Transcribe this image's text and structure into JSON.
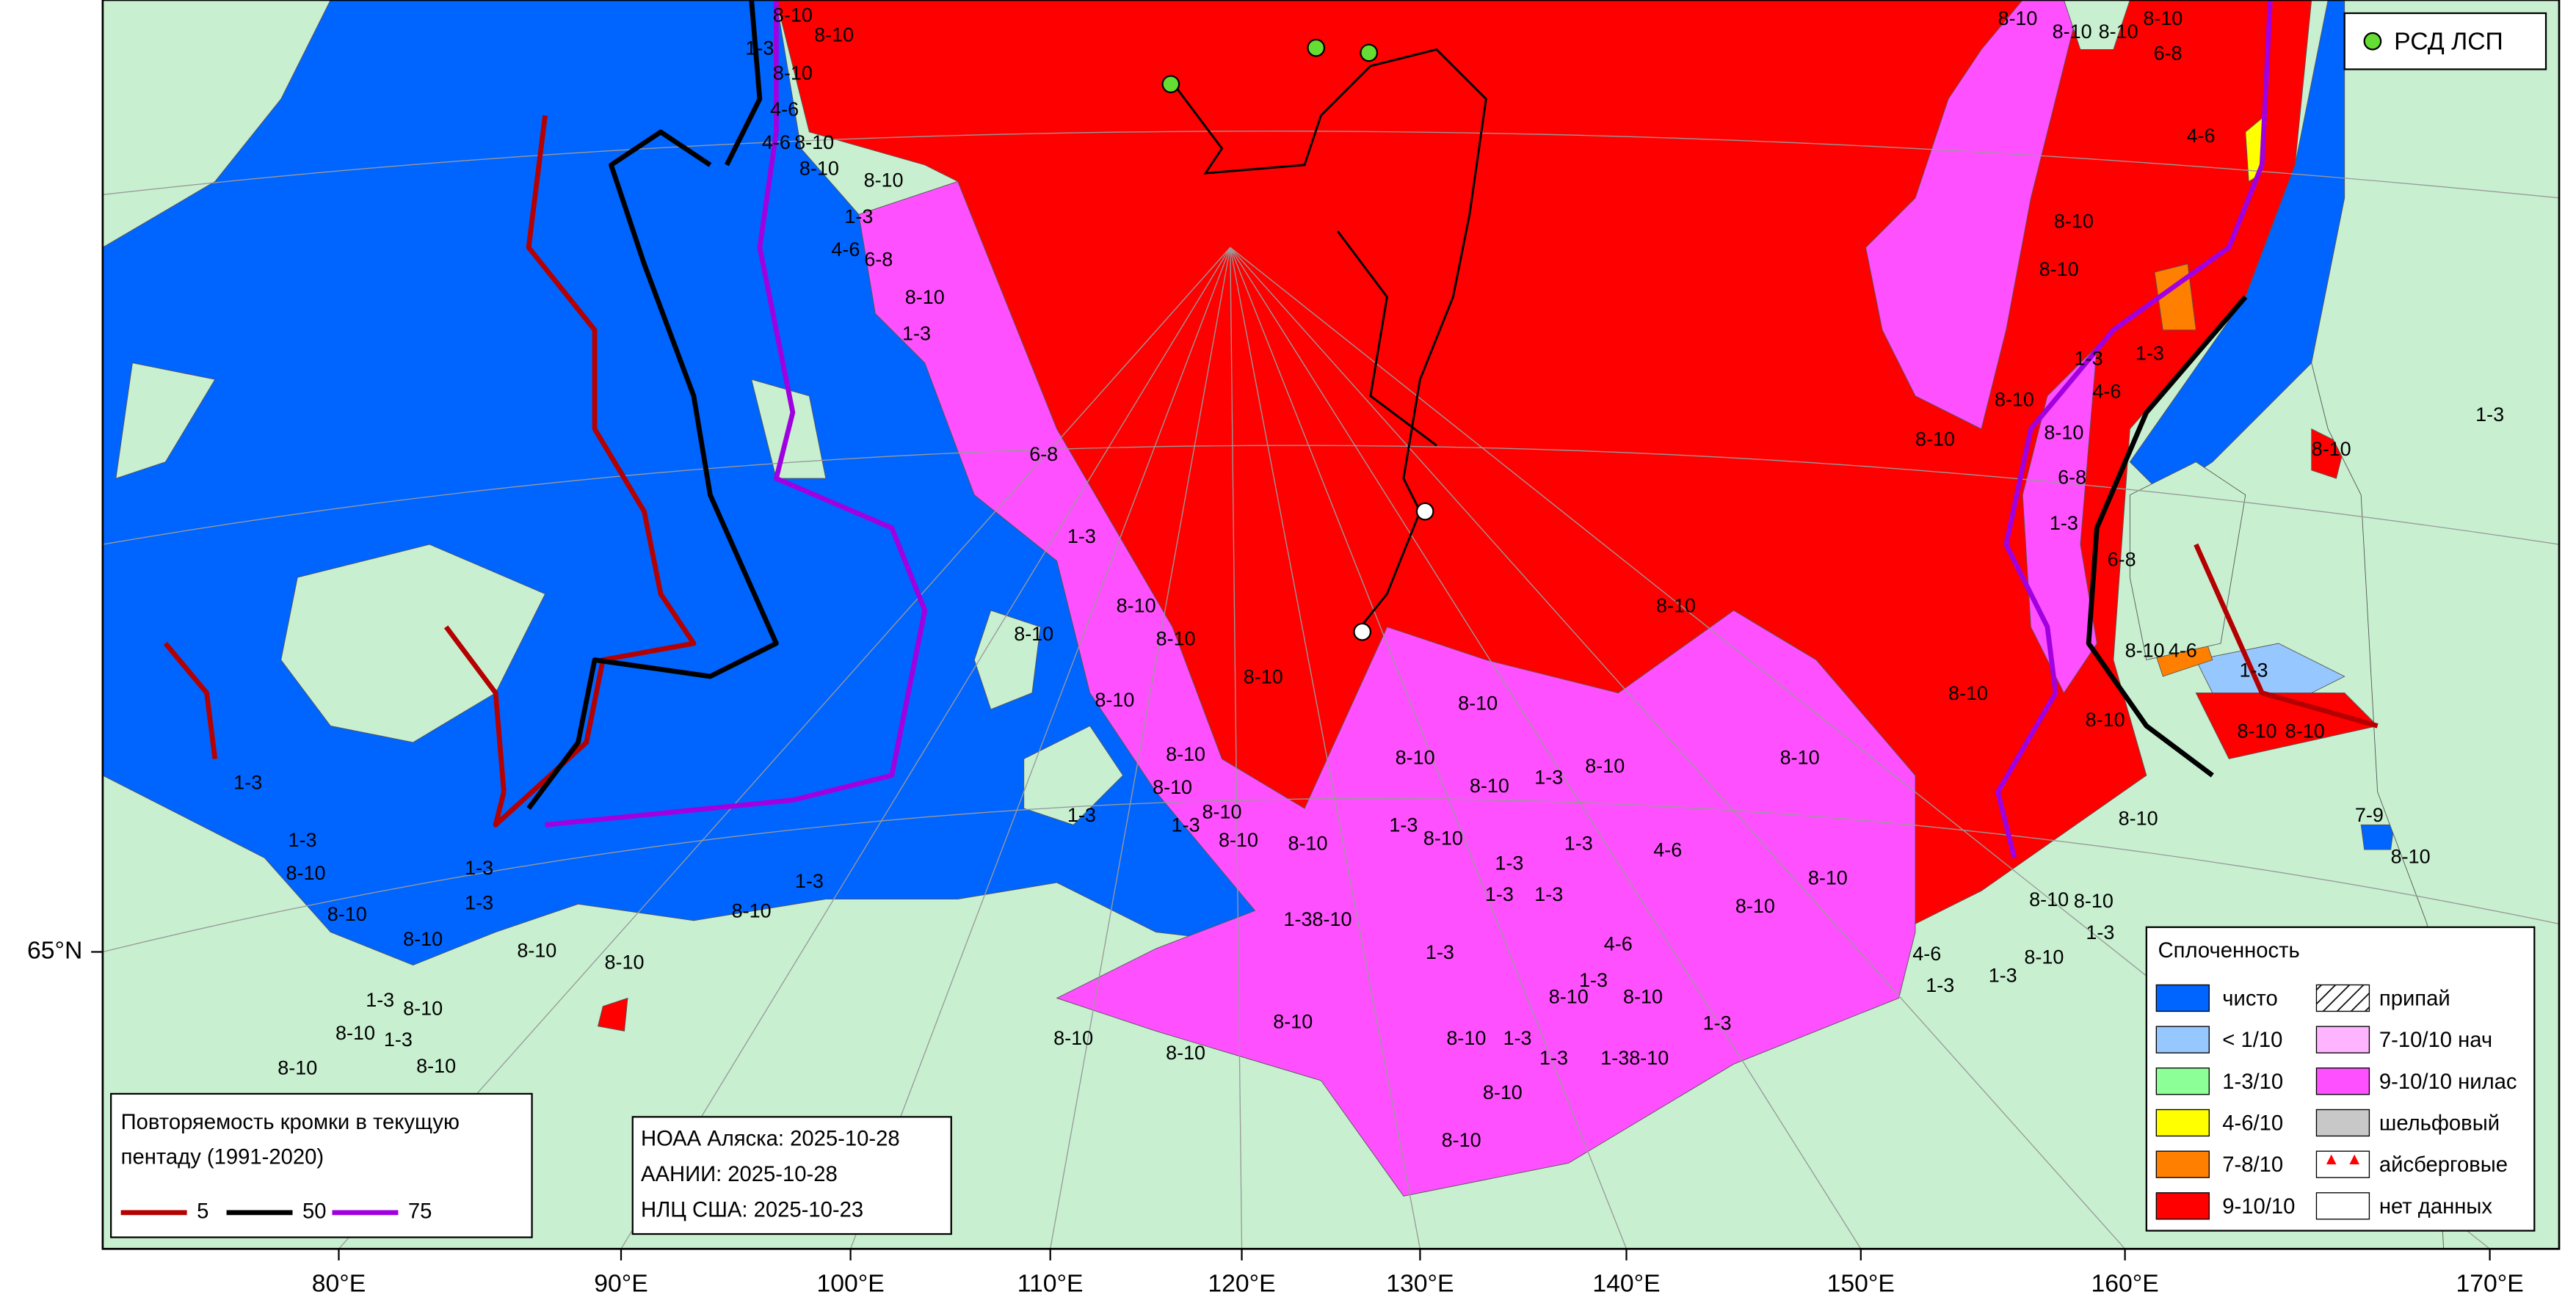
{
  "map": {
    "lon_labels": [
      "80°E",
      "90°E",
      "100°E",
      "110°E",
      "120°E",
      "130°E",
      "140°E",
      "150°E",
      "160°E",
      "170°E"
    ],
    "lat_labels": [
      "65°N"
    ],
    "station_legend": "РСД ЛСП",
    "concentration_legend": {
      "title": "Сплоченность",
      "items": [
        {
          "label": "чисто",
          "color": "#0064ff"
        },
        {
          "label": "< 1/10",
          "color": "#96c8ff"
        },
        {
          "label": "1-3/10",
          "color": "#8cff96"
        },
        {
          "label": "4-6/10",
          "color": "#ffff00"
        },
        {
          "label": "7-8/10",
          "color": "#ff8000"
        },
        {
          "label": "9-10/10",
          "color": "#ff0000"
        },
        {
          "label": "припай",
          "pattern": "hatch"
        },
        {
          "label": "7-10/10 нач",
          "color": "#ffb4ff"
        },
        {
          "label": "9-10/10 нилас",
          "color": "#ff50ff"
        },
        {
          "label": "шельфовый",
          "color": "#c8c8c8"
        },
        {
          "label": "айсберговые",
          "pattern": "triangles"
        },
        {
          "label": "нет данных",
          "color": "#ffffff"
        }
      ]
    },
    "edge_legend": {
      "title_lines": [
        "Повторяемость кромки в текущую",
        "пентаду (1991-2020)"
      ],
      "items": [
        {
          "label": "5",
          "color": "#b40000"
        },
        {
          "label": "50",
          "color": "#000000"
        },
        {
          "label": "75",
          "color": "#a000e0"
        }
      ]
    },
    "sources": [
      "НОАА Аляска: 2025-10-28",
      "ААНИИ: 2025-10-28",
      "НЛЦ США: 2025-10-23"
    ],
    "ice_labels": [
      "8-10",
      "8-10",
      "1-3",
      "8-10",
      "4-6",
      "4-6",
      "8-10",
      "8-10",
      "8-10",
      "1-3",
      "4-6",
      "6-8",
      "8-10",
      "1-3",
      "6-8",
      "1-3",
      "8-10",
      "8-10",
      "8-10",
      "8-10",
      "8-10",
      "8-10",
      "8-10",
      "8-10",
      "8-10",
      "1-3",
      "8-10",
      "8-10",
      "8-10",
      "8-10",
      "8-10",
      "8-10",
      "8-10",
      "8-10",
      "8-10",
      "8-10",
      "8-10",
      "8-10",
      "6-8",
      "4-6",
      "1-3",
      "1-3",
      "4-6",
      "8-10",
      "6-8",
      "1-3",
      "6-8",
      "8-10",
      "4-6",
      "8-10",
      "8-10",
      "1-3",
      "8-10",
      "8-10",
      "1-3",
      "8-10",
      "8-10",
      "8-10",
      "1-3",
      "4-6",
      "1-3",
      "1-3",
      "8-10",
      "8-10",
      "8-10",
      "4-6",
      "1-3",
      "1-3",
      "1-3",
      "1-3",
      "4-6",
      "1-3",
      "8-10",
      "8-10",
      "8-10",
      "1-3",
      "8-10",
      "8-10",
      "8-10",
      "8-10",
      "1-3",
      "8-10",
      "1-3",
      "1-38-10",
      "1-3",
      "1-3",
      "1-3",
      "8-10",
      "8-10",
      "1-3",
      "1-3",
      "8-10",
      "8-10",
      "8-10",
      "1-3",
      "8-10",
      "8-10",
      "1-3",
      "8-10",
      "8-10",
      "8-10",
      "8-10",
      "8-10",
      "1-3",
      "1-38-10",
      "1-3",
      "8-10",
      "8-10",
      "1-3",
      "8-10",
      "1-3",
      "7-9",
      "8-10"
    ]
  }
}
